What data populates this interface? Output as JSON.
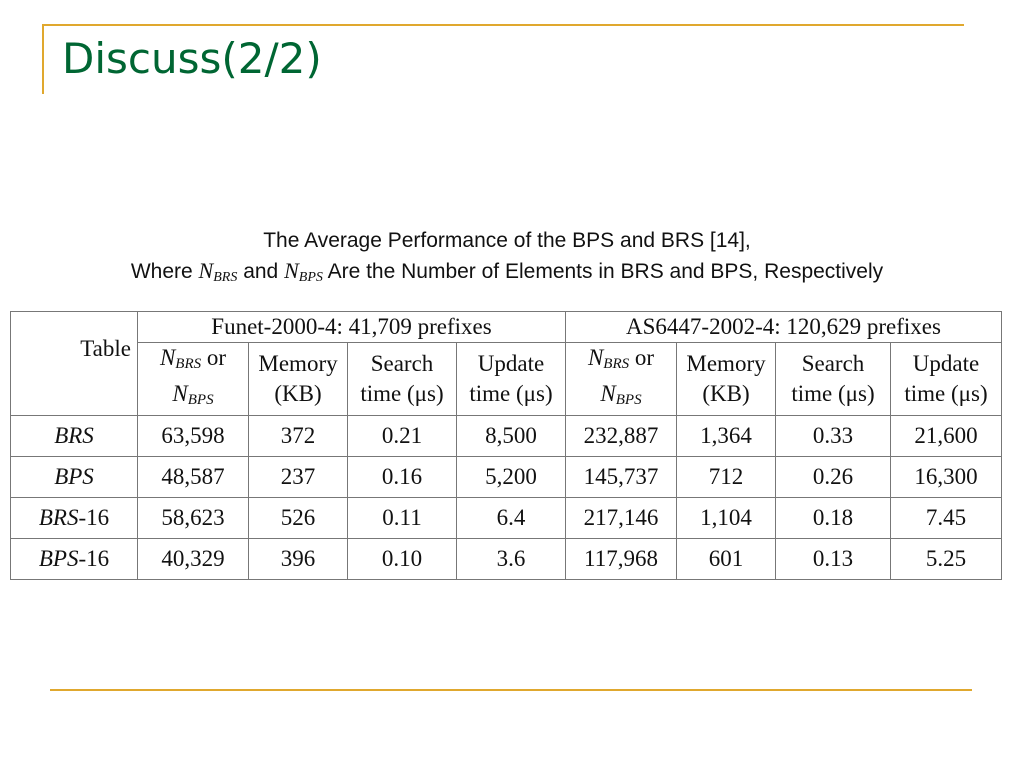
{
  "slide": {
    "title": "Discuss(2/2)",
    "accent_color": "#e0a82e",
    "title_color": "#006633"
  },
  "caption": {
    "line1": "The Average Performance of the BPS and BRS [14],",
    "line2_where": "Where",
    "var1_base": "N",
    "var1_sub": "BRS",
    "line2_and": "and",
    "var2_base": "N",
    "var2_sub": "BPS",
    "line2_rest": "Are the Number of Elements in BRS and BPS, Respectively"
  },
  "table": {
    "corner_label": "Table",
    "groups": [
      "Funet-2000-4: 41,709 prefixes",
      "AS6447-2002-4: 120,629 prefixes"
    ],
    "columns": [
      {
        "n1": "N",
        "s1": "BRS",
        "or": "or",
        "n2": "N",
        "s2": "BPS"
      },
      {
        "line1": "Memory",
        "line2": "(KB)"
      },
      {
        "line1": "Search",
        "line2": "time (μs)"
      },
      {
        "line1": "Update",
        "line2": "time (μs)"
      }
    ],
    "rows": [
      {
        "name": "BRS",
        "suffix": "",
        "cells": [
          "63,598",
          "372",
          "0.21",
          "8,500",
          "232,887",
          "1,364",
          "0.33",
          "21,600"
        ]
      },
      {
        "name": "BPS",
        "suffix": "",
        "cells": [
          "48,587",
          "237",
          "0.16",
          "5,200",
          "145,737",
          "712",
          "0.26",
          "16,300"
        ]
      },
      {
        "name": "BRS",
        "suffix": "-16",
        "cells": [
          "58,623",
          "526",
          "0.11",
          "6.4",
          "217,146",
          "1,104",
          "0.18",
          "7.45"
        ]
      },
      {
        "name": "BPS",
        "suffix": "-16",
        "cells": [
          "40,329",
          "396",
          "0.10",
          "3.6",
          "117,968",
          "601",
          "0.13",
          "5.25"
        ]
      }
    ]
  }
}
